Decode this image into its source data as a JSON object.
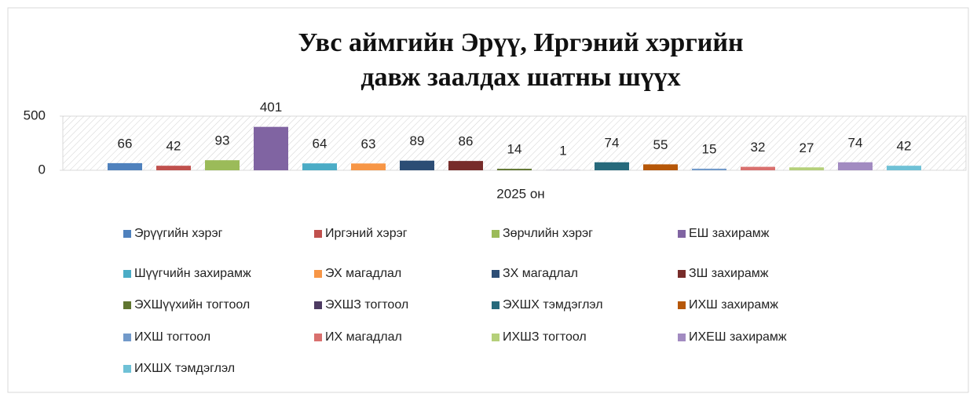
{
  "chart_data": {
    "type": "bar",
    "title": [
      "Увс аймгийн Эрүү, Иргэний хэргийн",
      "давж заалдах шатны шүүх"
    ],
    "categories": [
      "2025 он"
    ],
    "ylim": [
      0,
      500
    ],
    "yticks": [
      0,
      500
    ],
    "series": [
      {
        "name": "Эрүүгийн хэрэг",
        "color": "#4f81bd",
        "values": [
          66
        ]
      },
      {
        "name": "Иргэний хэрэг",
        "color": "#c0504d",
        "values": [
          42
        ]
      },
      {
        "name": "Зөрчлийн хэрэг",
        "color": "#9bbb59",
        "values": [
          93
        ]
      },
      {
        "name": "ЕШ захирамж",
        "color": "#8064a2",
        "values": [
          401
        ]
      },
      {
        "name": "Шүүгчийн захирамж",
        "color": "#4bacc6",
        "values": [
          64
        ]
      },
      {
        "name": "ЭХ магадлал",
        "color": "#f79646",
        "values": [
          63
        ]
      },
      {
        "name": "ЗХ магадлал",
        "color": "#2c4d75",
        "values": [
          89
        ]
      },
      {
        "name": "ЗШ захирамж",
        "color": "#772c2a",
        "values": [
          86
        ]
      },
      {
        "name": "ЭХШүүхийн тогтоол",
        "color": "#5f7530",
        "values": [
          14
        ]
      },
      {
        "name": "ЭХШЗ тогтоол",
        "color": "#4d3b62",
        "values": [
          1
        ]
      },
      {
        "name": "ЭХШХ тэмдэглэл",
        "color": "#276a7c",
        "values": [
          74
        ]
      },
      {
        "name": "ИХШ захирамж",
        "color": "#b65708",
        "values": [
          55
        ]
      },
      {
        "name": "ИХШ тогтоол",
        "color": "#729aca",
        "values": [
          15
        ]
      },
      {
        "name": "ИХ магадлал",
        "color": "#d9706e",
        "values": [
          32
        ]
      },
      {
        "name": "ИХШЗ тогтоол",
        "color": "#b5d07a",
        "values": [
          27
        ]
      },
      {
        "name": "ИХЕШ захирамж",
        "color": "#a28bc1",
        "values": [
          74
        ]
      },
      {
        "name": "ИХШХ тэмдэглэл",
        "color": "#6fc1d6",
        "values": [
          42
        ]
      }
    ]
  }
}
